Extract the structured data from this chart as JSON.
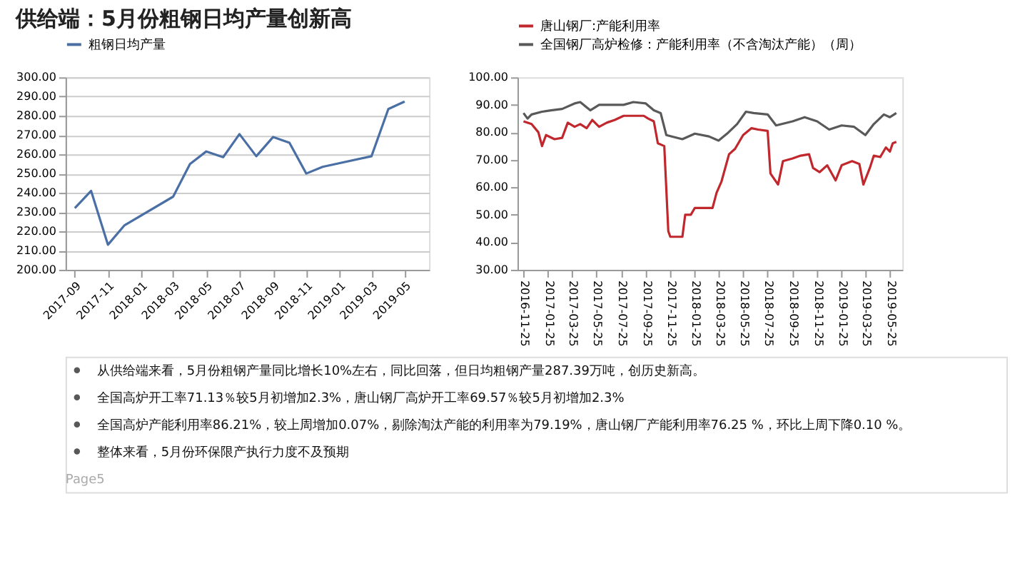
{
  "chart_data": [
    {
      "type": "line",
      "title": "供给端：5月份粗钢日均产量创新高",
      "legend": "top",
      "grid": "y",
      "marker": "none",
      "line_style": "solid",
      "xlim": [
        "2017-08-15",
        "2019-06-15"
      ],
      "xticks": [
        "2017-09",
        "2017-11",
        "2018-01",
        "2018-03",
        "2018-05",
        "2018-07",
        "2018-09",
        "2018-11",
        "2019-01",
        "2019-03",
        "2019-05"
      ],
      "ylim": [
        200,
        300
      ],
      "yticks": [
        {
          "value": 200,
          "label": "200.00"
        },
        {
          "value": 210,
          "label": "210.00"
        },
        {
          "value": 220,
          "label": "220.00"
        },
        {
          "value": 230,
          "label": "230.00"
        },
        {
          "value": 240,
          "label": "240.00"
        },
        {
          "value": 250,
          "label": "250.00"
        },
        {
          "value": 260,
          "label": "260.00"
        },
        {
          "value": 270,
          "label": "270.00"
        },
        {
          "value": 280,
          "label": "280.00"
        },
        {
          "value": 290,
          "label": "290.00"
        },
        {
          "value": 300,
          "label": "300.00"
        }
      ],
      "x": [
        "2017-09",
        "2017-10",
        "2017-11",
        "2017-12",
        "2018-03",
        "2018-04",
        "2018-05",
        "2018-06",
        "2018-07",
        "2018-08",
        "2018-09",
        "2018-10",
        "2018-11",
        "2018-12",
        "2019-03",
        "2019-04",
        "2019-05"
      ],
      "series": [
        {
          "name": "粗钢日均产量",
          "color": "#4a6fa5",
          "values": [
            232,
            241,
            213,
            223,
            238,
            255,
            261.5,
            258.5,
            270.5,
            259,
            269,
            266,
            250,
            253.5,
            259,
            283.5,
            287.4
          ]
        }
      ]
    },
    {
      "type": "line",
      "legend": "top",
      "grid": false,
      "marker": "none",
      "line_style": "solid",
      "xlim": [
        "2016-11-10",
        "2019-06-25"
      ],
      "xticks": [
        "2016-11-25",
        "2017-01-25",
        "2017-03-25",
        "2017-05-25",
        "2017-07-25",
        "2017-09-25",
        "2017-11-25",
        "2018-01-25",
        "2018-03-25",
        "2018-05-25",
        "2018-07-25",
        "2018-09-25",
        "2018-11-25",
        "2019-01-25",
        "2019-03-25",
        "2019-05-25"
      ],
      "ylim": [
        30,
        100
      ],
      "yticks": [
        {
          "value": 30,
          "label": "30.00"
        },
        {
          "value": 40,
          "label": "40.00"
        },
        {
          "value": 50,
          "label": "50.00"
        },
        {
          "value": 60,
          "label": "60.00"
        },
        {
          "value": 70,
          "label": "70.00"
        },
        {
          "value": 80,
          "label": "80.00"
        },
        {
          "value": 90,
          "label": "90.00"
        },
        {
          "value": 100,
          "label": "100.00"
        }
      ],
      "series": [
        {
          "name": "唐山钢厂:产能利用率",
          "color": "#c0282d",
          "x": [
            "2016-11-25",
            "2016-12-15",
            "2017-01-01",
            "2017-01-10",
            "2017-01-20",
            "2017-02-10",
            "2017-03-01",
            "2017-03-15",
            "2017-04-01",
            "2017-04-15",
            "2017-05-01",
            "2017-05-15",
            "2017-06-01",
            "2017-06-20",
            "2017-07-10",
            "2017-08-01",
            "2017-09-01",
            "2017-09-20",
            "2017-10-01",
            "2017-10-15",
            "2017-10-25",
            "2017-11-10",
            "2017-11-20",
            "2017-11-25",
            "2017-12-25",
            "2018-01-01",
            "2018-01-15",
            "2018-01-25",
            "2018-03-10",
            "2018-03-20",
            "2018-04-01",
            "2018-04-20",
            "2018-05-05",
            "2018-05-25",
            "2018-06-15",
            "2018-07-01",
            "2018-07-25",
            "2018-08-01",
            "2018-08-20",
            "2018-09-01",
            "2018-09-25",
            "2018-10-15",
            "2018-11-05",
            "2018-11-15",
            "2018-12-01",
            "2018-12-20",
            "2019-01-10",
            "2019-01-25",
            "2019-02-20",
            "2019-03-10",
            "2019-03-20",
            "2019-04-05",
            "2019-04-15",
            "2019-05-01",
            "2019-05-15",
            "2019-05-25",
            "2019-06-01",
            "2019-06-10"
          ],
          "values": [
            84,
            83,
            80,
            75,
            79,
            77.5,
            78,
            83.5,
            82,
            83,
            81.5,
            84.5,
            82,
            83.5,
            84.5,
            86,
            86,
            86,
            85,
            84,
            76,
            75,
            44,
            42,
            42,
            50,
            50,
            52.5,
            52.5,
            58,
            62,
            72,
            74,
            79,
            81.5,
            81,
            80.5,
            65,
            61,
            69.5,
            70.5,
            71.5,
            72,
            67,
            65.5,
            68,
            62.5,
            68,
            69.5,
            68.5,
            61,
            67,
            71.5,
            71,
            74.5,
            73,
            76,
            76.5
          ]
        },
        {
          "name": "全国钢厂高炉检修：产能利用率（不含淘汰产能）（周）",
          "color": "#595959",
          "x": [
            "2016-11-25",
            "2016-12-05",
            "2016-12-15",
            "2017-01-10",
            "2017-02-01",
            "2017-03-01",
            "2017-04-01",
            "2017-04-15",
            "2017-05-10",
            "2017-06-01",
            "2017-07-01",
            "2017-08-01",
            "2017-08-25",
            "2017-09-25",
            "2017-10-15",
            "2017-11-01",
            "2017-11-15",
            "2017-12-25",
            "2018-01-25",
            "2018-03-01",
            "2018-03-25",
            "2018-04-15",
            "2018-05-10",
            "2018-06-01",
            "2018-06-20",
            "2018-07-25",
            "2018-08-15",
            "2018-09-25",
            "2018-10-25",
            "2018-11-25",
            "2018-12-25",
            "2019-01-25",
            "2019-02-25",
            "2019-03-25",
            "2019-04-15",
            "2019-05-10",
            "2019-05-25",
            "2019-06-10"
          ],
          "values": [
            87,
            85,
            86.5,
            87.5,
            88,
            88.5,
            90.5,
            91,
            88,
            90,
            90,
            90,
            91,
            90.5,
            88,
            87,
            79,
            77.5,
            79.5,
            78.5,
            77,
            79.5,
            83,
            87.5,
            87,
            86.5,
            82.5,
            84,
            85.5,
            84,
            81,
            82.5,
            82,
            79,
            83,
            86.5,
            85.5,
            87
          ]
        }
      ]
    },
    {
      "type": "other",
      "annotations": [
        "从供给端来看，5月份粗钢产量同比增长10%左右，同比回落，但日均粗钢产量287.39万吨，创历史新高。",
        "全国高炉开工率71.13％较5月初增加2.3%，唐山钢厂高炉开工率69.57％较5月初增加2.3%",
        "全国高炉产能利用率86.21%，较上周增加0.07%，剔除淘汰产能的利用率为79.19%，唐山钢厂产能利用率76.25 %，环比上周下降0.10 %。",
        "整体来看，5月份环保限产执行力度不及预期",
        "Page5"
      ]
    }
  ]
}
